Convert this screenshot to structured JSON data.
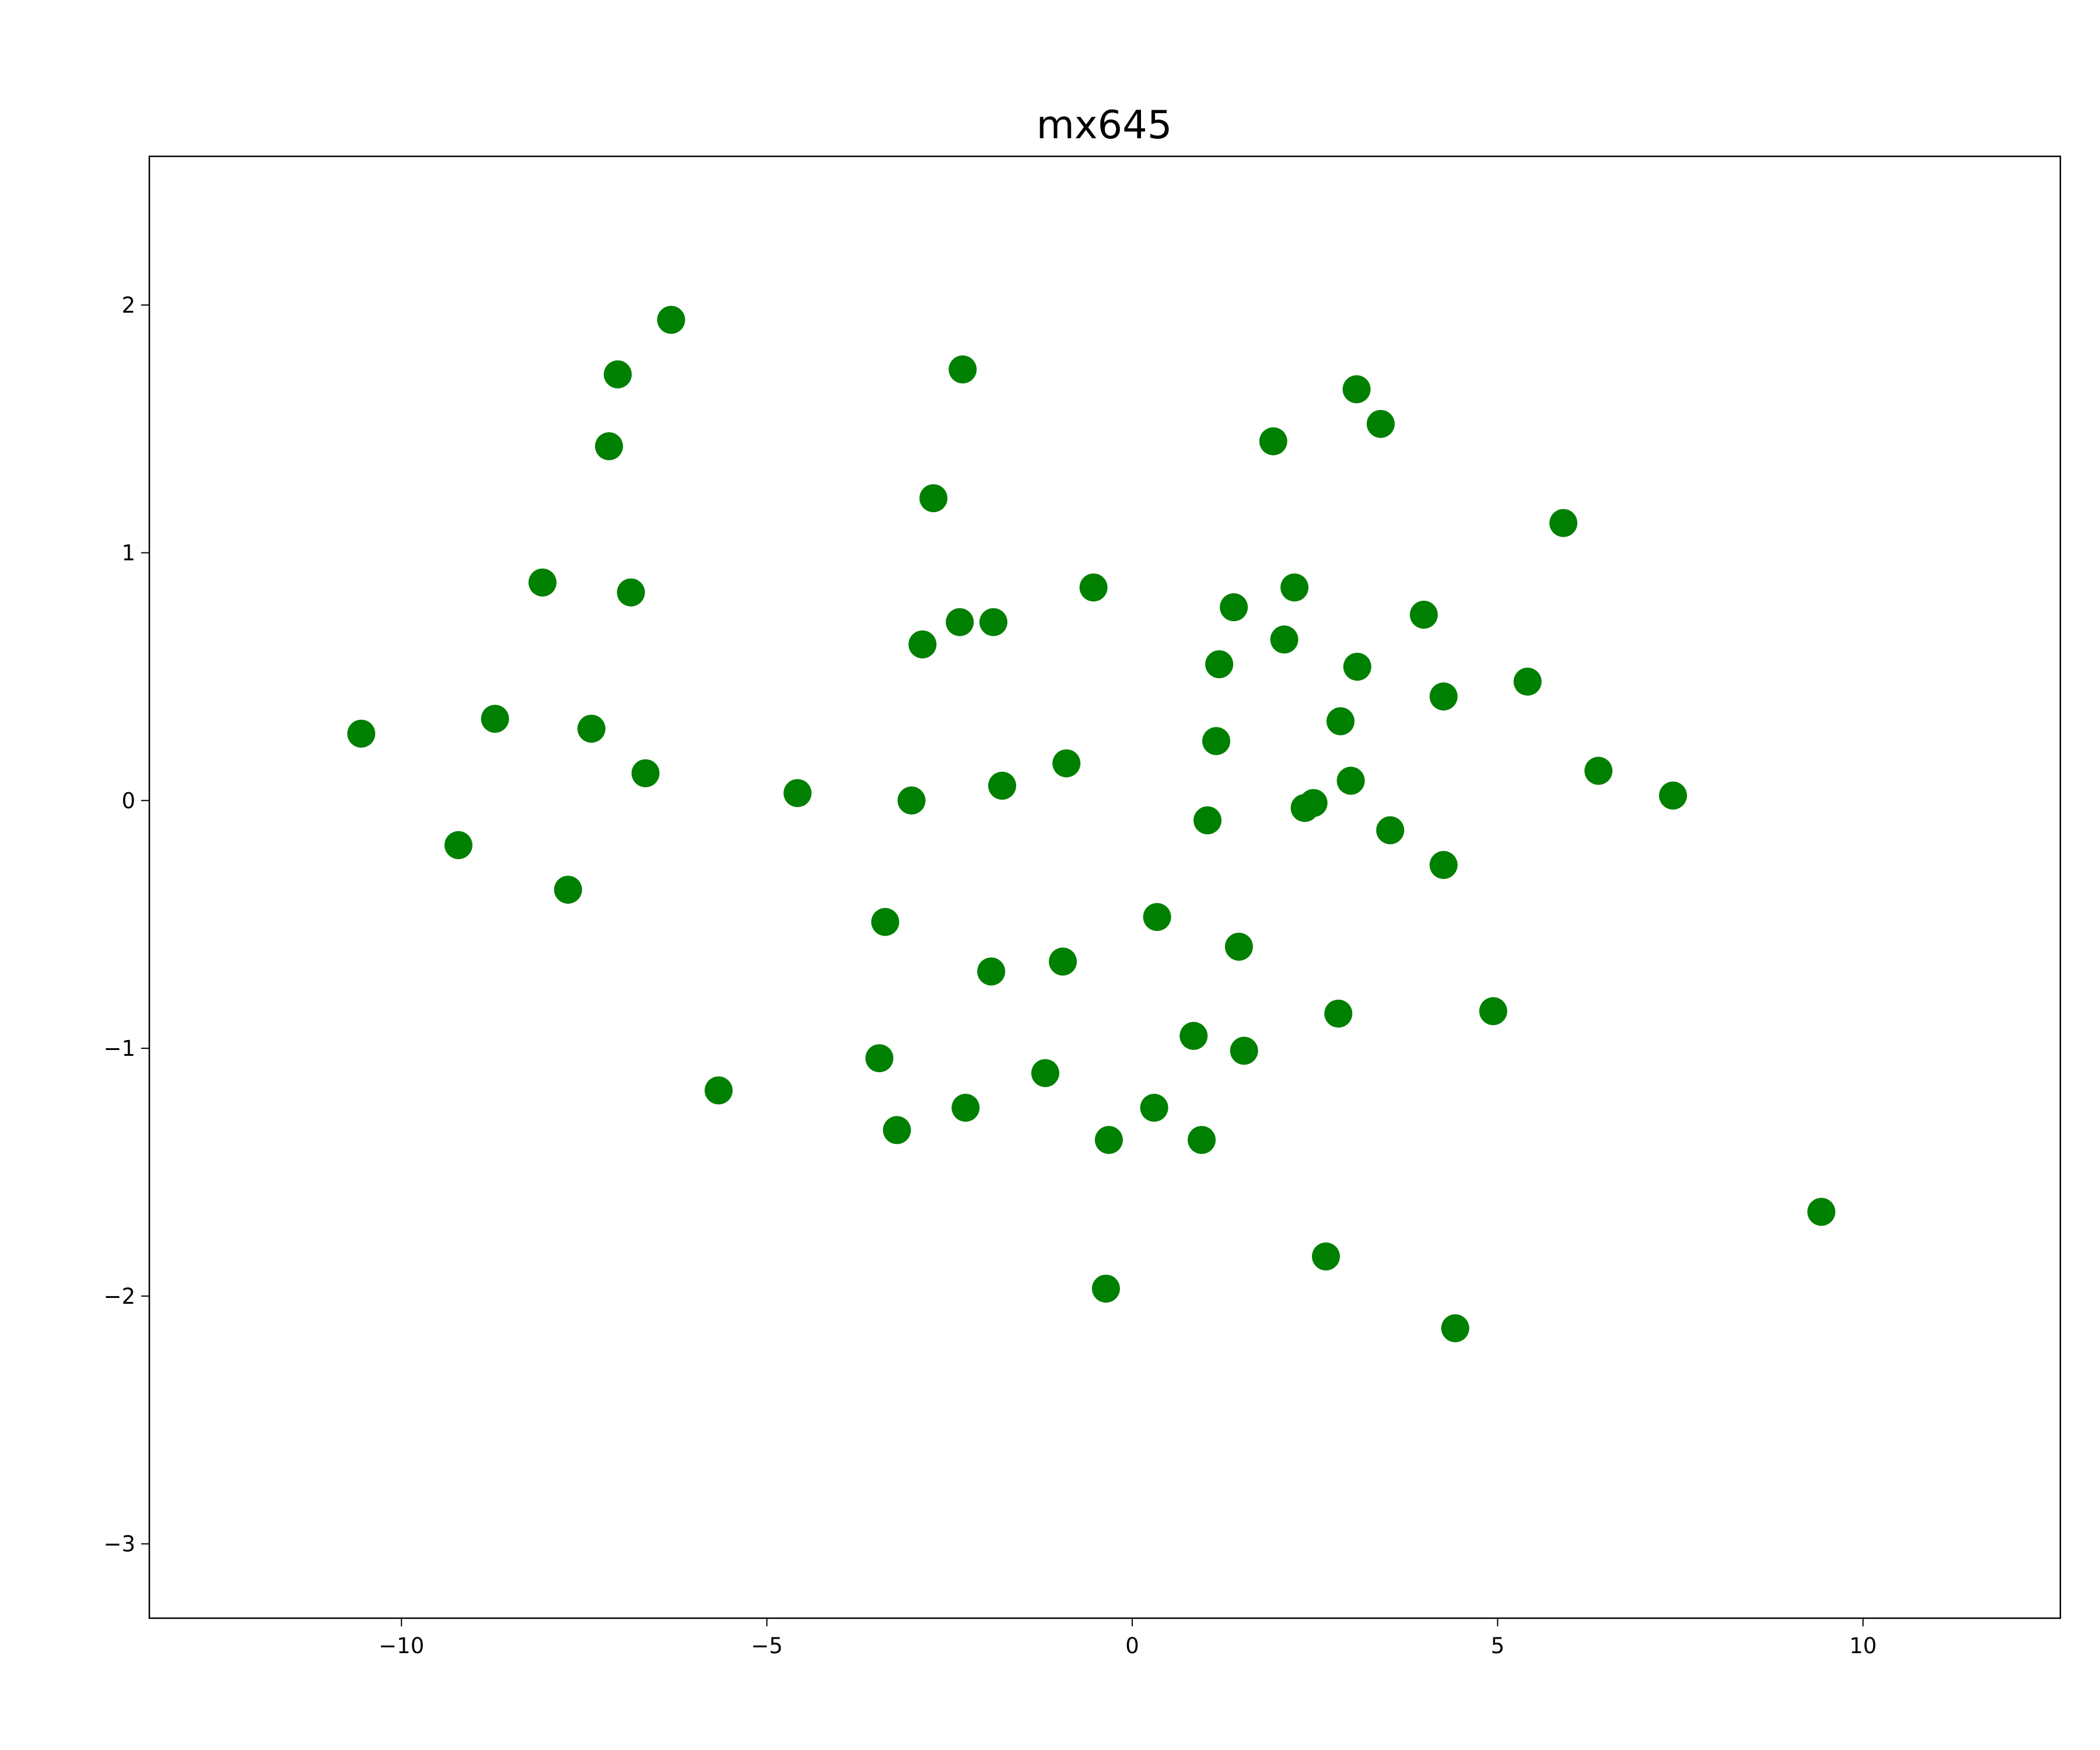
{
  "chart_data": {
    "type": "scatter",
    "title": "mx645",
    "xlabel": "",
    "ylabel": "",
    "xlim": [
      -13.45,
      12.7
    ],
    "ylim": [
      -3.3,
      2.6
    ],
    "xticks": [
      -10,
      -5,
      0,
      5,
      10
    ],
    "yticks": [
      -3,
      -2,
      -1,
      0,
      1,
      2
    ],
    "xtick_labels": [
      "−10",
      "−5",
      "0",
      "5",
      "10"
    ],
    "ytick_labels": [
      "−3",
      "−2",
      "−1",
      "0",
      "1",
      "2"
    ],
    "grid": false,
    "legend": "none",
    "marker_color": "#008000",
    "series": [
      {
        "points": [
          [
            -10.55,
            0.27
          ],
          [
            -9.22,
            -0.18
          ],
          [
            -8.72,
            0.33
          ],
          [
            -8.07,
            0.88
          ],
          [
            -7.72,
            -0.36
          ],
          [
            -7.4,
            0.29
          ],
          [
            -7.16,
            1.43
          ],
          [
            -7.04,
            1.72
          ],
          [
            -6.86,
            0.84
          ],
          [
            -6.66,
            0.11
          ],
          [
            -6.31,
            1.94
          ],
          [
            -5.66,
            -1.17
          ],
          [
            -4.58,
            0.03
          ],
          [
            -3.46,
            -1.04
          ],
          [
            -3.38,
            -0.49
          ],
          [
            -3.22,
            -1.33
          ],
          [
            -3.02,
            0.0
          ],
          [
            -2.87,
            0.63
          ],
          [
            -2.72,
            1.22
          ],
          [
            -2.36,
            0.72
          ],
          [
            -2.32,
            1.74
          ],
          [
            -2.28,
            -1.24
          ],
          [
            -1.93,
            -0.69
          ],
          [
            -1.9,
            0.72
          ],
          [
            -1.78,
            0.06
          ],
          [
            -1.19,
            -1.1
          ],
          [
            -0.95,
            -0.65
          ],
          [
            -0.9,
            0.15
          ],
          [
            -0.53,
            0.86
          ],
          [
            -0.36,
            -1.97
          ],
          [
            -0.32,
            -1.37
          ],
          [
            0.3,
            -1.24
          ],
          [
            0.34,
            -0.47
          ],
          [
            0.84,
            -0.95
          ],
          [
            0.95,
            -1.37
          ],
          [
            1.03,
            -0.08
          ],
          [
            1.15,
            0.24
          ],
          [
            1.19,
            0.55
          ],
          [
            1.39,
            0.78
          ],
          [
            1.46,
            -0.59
          ],
          [
            1.53,
            -1.01
          ],
          [
            1.93,
            1.45
          ],
          [
            2.08,
            0.65
          ],
          [
            2.22,
            0.86
          ],
          [
            2.36,
            -0.03
          ],
          [
            2.48,
            -0.01
          ],
          [
            2.65,
            -1.84
          ],
          [
            2.82,
            -0.86
          ],
          [
            2.85,
            0.32
          ],
          [
            2.99,
            0.08
          ],
          [
            3.07,
            1.66
          ],
          [
            3.08,
            0.54
          ],
          [
            3.4,
            1.52
          ],
          [
            3.53,
            -0.12
          ],
          [
            3.99,
            0.75
          ],
          [
            4.26,
            -0.26
          ],
          [
            4.26,
            0.42
          ],
          [
            4.42,
            -2.13
          ],
          [
            4.94,
            -0.85
          ],
          [
            5.41,
            0.48
          ],
          [
            5.9,
            1.12
          ],
          [
            6.38,
            0.12
          ],
          [
            7.4,
            0.02
          ],
          [
            9.43,
            -1.66
          ]
        ]
      }
    ]
  }
}
